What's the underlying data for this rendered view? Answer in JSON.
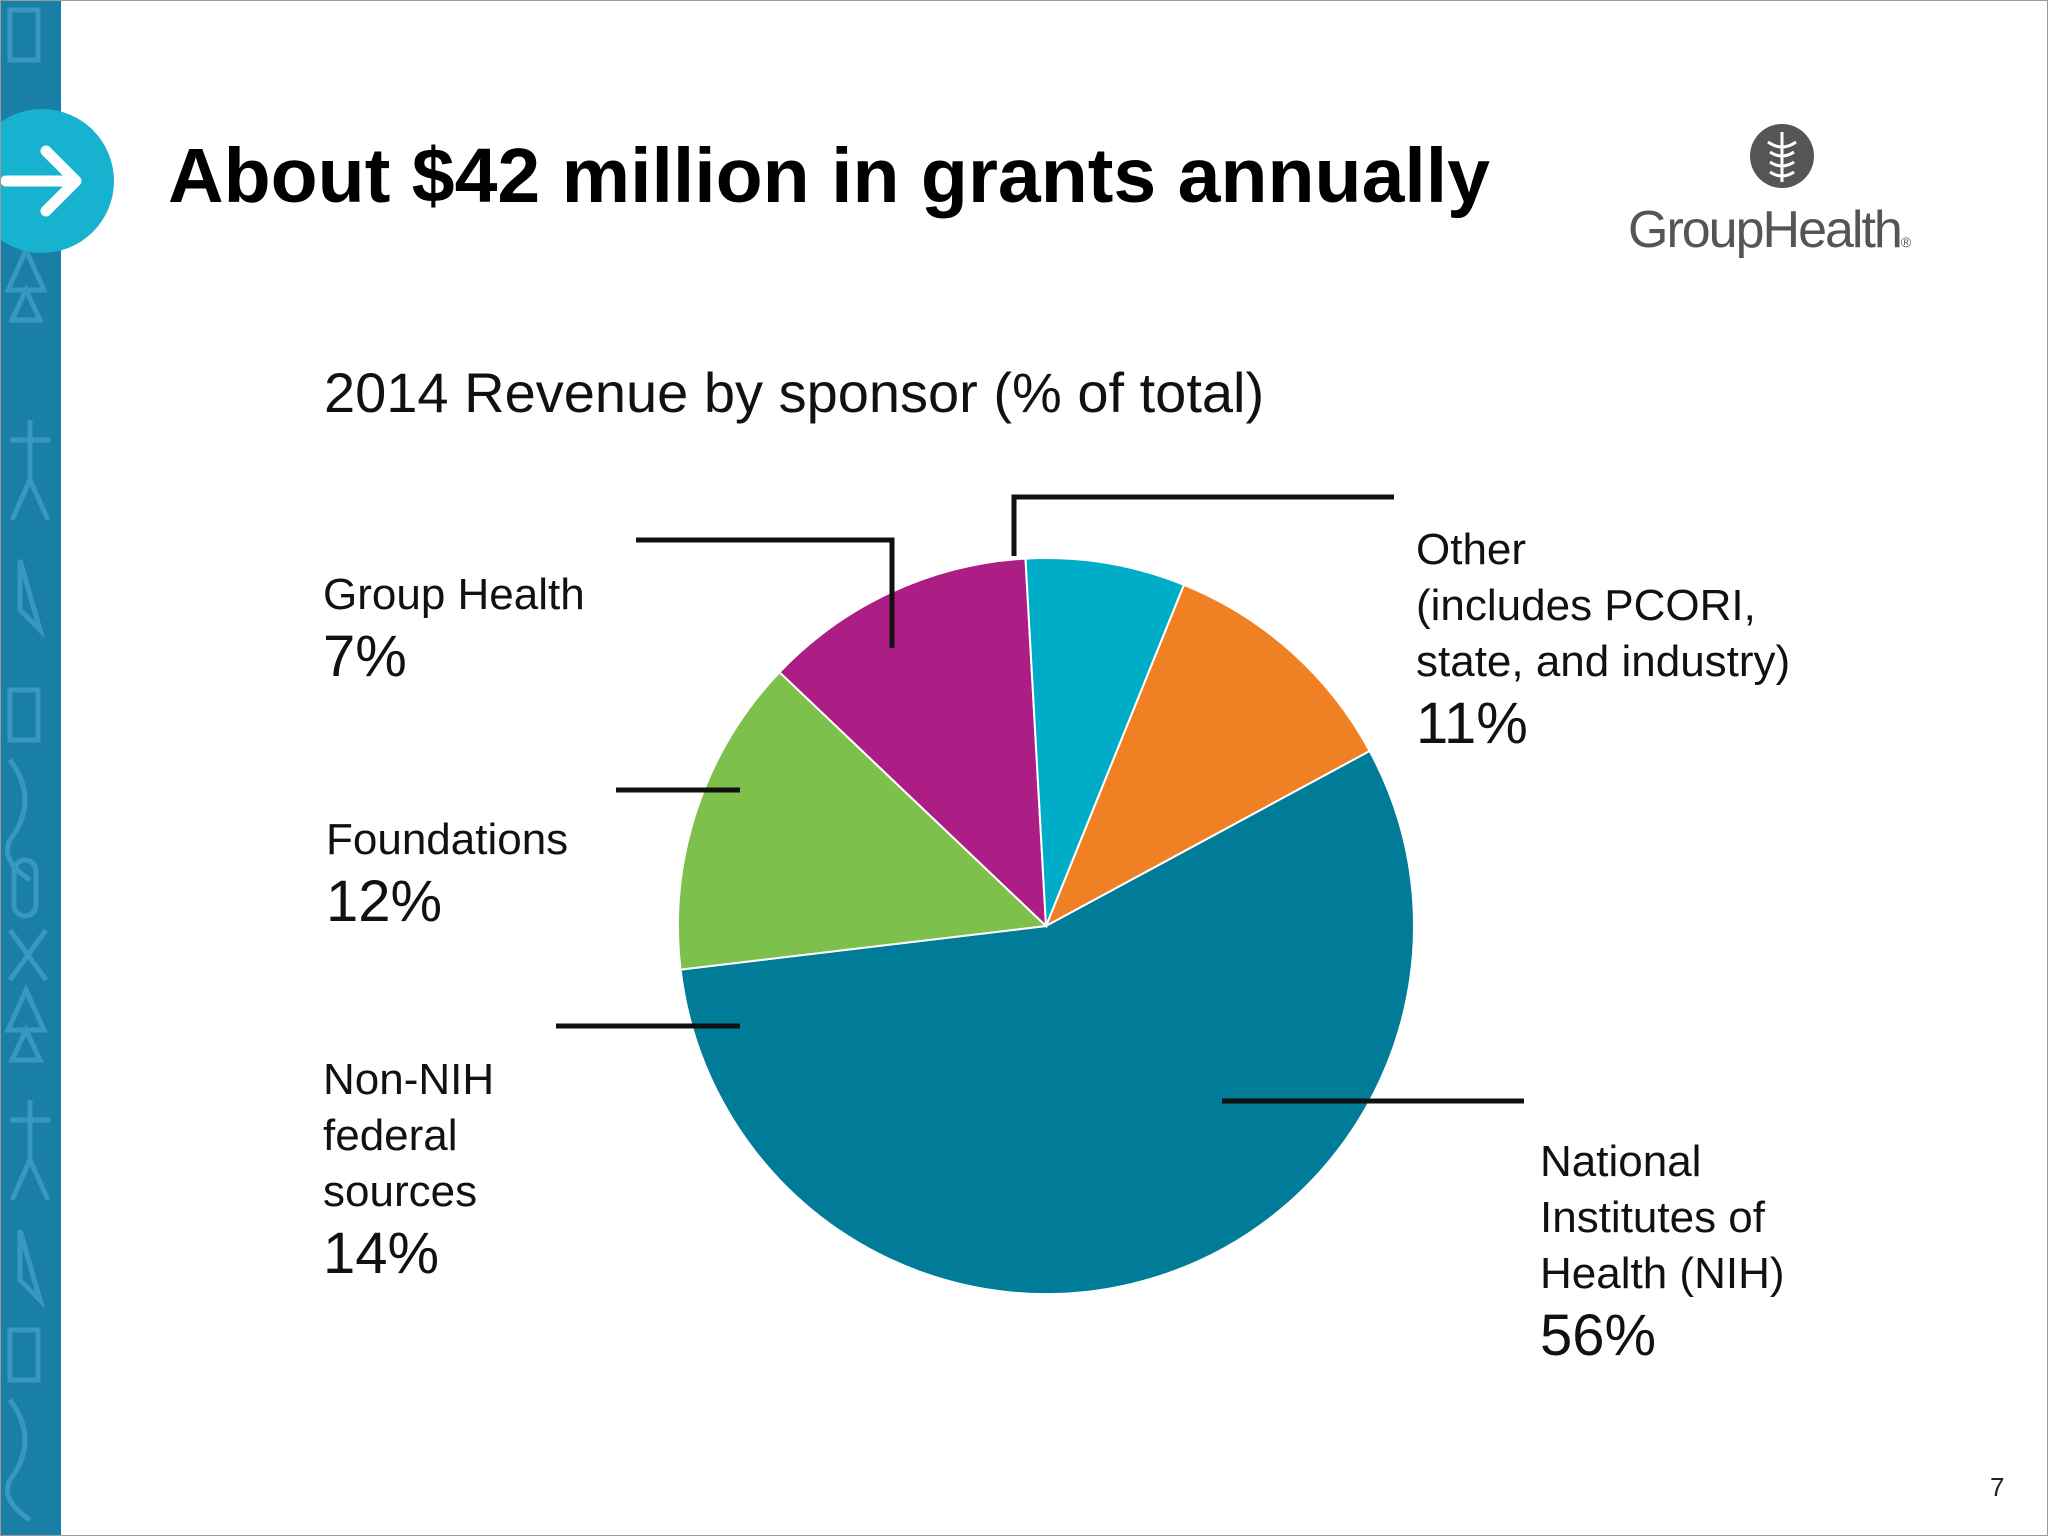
{
  "slide": {
    "title": "About $42 million in grants annually",
    "page_number": "7"
  },
  "logo": {
    "wordmark": "GroupHealth",
    "registered_mark": "®",
    "icon": "caduceus-seal-icon"
  },
  "decor": {
    "arrow_badge_icon": "right-arrow-icon",
    "strip_icons": [
      "building-icon",
      "pine-tree-icon",
      "person-icon",
      "stethoscope-icon",
      "pill-icon",
      "scissors-icon"
    ]
  },
  "colors": {
    "strip": "#1a7fa6",
    "arrow_badge": "#17b2cf",
    "logo_gray": "#555555"
  },
  "chart_data": {
    "type": "pie",
    "title": "2014 Revenue by sponsor (% of total)",
    "slices": [
      {
        "name": "Other\n(includes PCORI,\nstate, and industry)",
        "value": 11,
        "label": "11%",
        "color": "#f08024"
      },
      {
        "name": "National\nInstitutes of\nHealth (NIH)",
        "value": 56,
        "label": "56%",
        "color": "#007c98"
      },
      {
        "name": "Non-NIH\nfederal\nsources",
        "value": 14,
        "label": "14%",
        "color": "#7dc14c"
      },
      {
        "name": "Foundations",
        "value": 12,
        "label": "12%",
        "color": "#ad1d86"
      },
      {
        "name": "Group Health",
        "value": 7,
        "label": "7%",
        "color": "#00adc8"
      }
    ],
    "start_angle_deg": 22,
    "direction": "clockwise",
    "legend": "none"
  }
}
